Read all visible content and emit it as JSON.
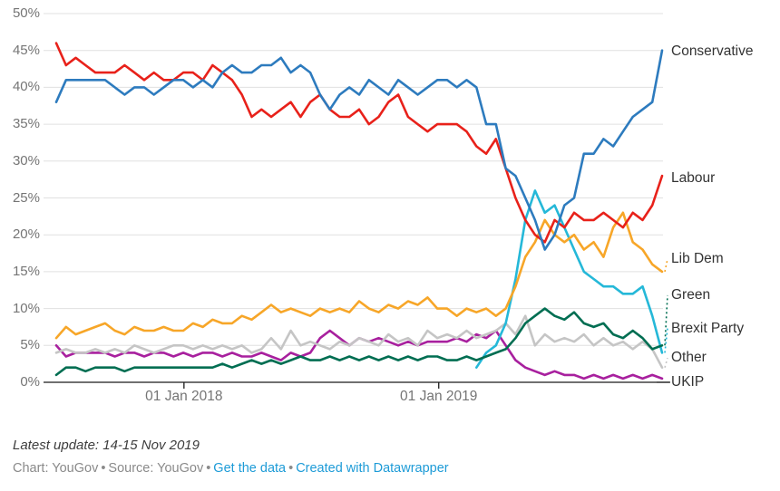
{
  "chart_data": {
    "type": "line",
    "title": "",
    "grid": true,
    "legend_position": "right-direct-labels",
    "grid_color": "#e0e0e0",
    "axis_color": "#1a1a1a",
    "tick_label_color": "#757575",
    "series_label_color": "#333333",
    "y_axis": {
      "min": 0,
      "max": 50,
      "step": 5,
      "suffix": "%"
    },
    "x_axis": {
      "start_date": "2017-07-02",
      "interval_days": 14,
      "ticks": [
        {
          "label": "01 Jan 2018",
          "date": "2018-01-01"
        },
        {
          "label": "01 Jan 2019",
          "date": "2019-01-01"
        }
      ]
    },
    "series": [
      {
        "name": "Conservative",
        "color": "#2d7bbe",
        "label_value": 44.8,
        "leader": "none",
        "values": [
          38,
          41,
          41,
          41,
          41,
          41,
          40,
          39,
          40,
          40,
          39,
          40,
          41,
          41,
          40,
          41,
          40,
          42,
          43,
          42,
          42,
          43,
          43,
          44,
          42,
          43,
          42,
          39,
          37,
          39,
          40,
          39,
          41,
          40,
          39,
          41,
          40,
          39,
          40,
          41,
          41,
          40,
          41,
          40,
          35,
          35,
          29,
          28,
          25,
          22,
          18,
          20,
          24,
          25,
          31,
          31,
          33,
          32,
          34,
          36,
          37,
          38,
          45
        ]
      },
      {
        "name": "Labour",
        "color": "#e8211a",
        "label_value": 27.6,
        "leader": "none",
        "values": [
          46,
          43,
          44,
          43,
          42,
          42,
          42,
          43,
          42,
          41,
          42,
          41,
          41,
          42,
          42,
          41,
          43,
          42,
          41,
          39,
          36,
          37,
          36,
          37,
          38,
          36,
          38,
          39,
          37,
          36,
          36,
          37,
          35,
          36,
          38,
          39,
          36,
          35,
          34,
          35,
          35,
          35,
          34,
          32,
          31,
          33,
          29,
          25,
          22,
          20,
          19,
          22,
          21,
          23,
          22,
          22,
          23,
          22,
          21,
          23,
          22,
          24,
          28
        ]
      },
      {
        "name": "Lib Dem",
        "color": "#f7a628",
        "label_value": 16.7,
        "leader": "dotted",
        "values": [
          6,
          7.5,
          6.5,
          7,
          7.5,
          8,
          7,
          6.5,
          7.5,
          7,
          7,
          7.5,
          7,
          7,
          8,
          7.5,
          8.5,
          8,
          8,
          9,
          8.5,
          9.5,
          10.5,
          9.5,
          10,
          9.5,
          9,
          10,
          9.5,
          10,
          9.5,
          11,
          10,
          9.5,
          10.5,
          10,
          11,
          10.5,
          11.5,
          10,
          10,
          9,
          10,
          9.5,
          10,
          9,
          10,
          13,
          17,
          19,
          22,
          20,
          19,
          20,
          18,
          19,
          17,
          21,
          23,
          19,
          18,
          16,
          15
        ]
      },
      {
        "name": "Green",
        "color": "#006e52",
        "label_value": 11.8,
        "leader": "dotted",
        "values": [
          1,
          2,
          2,
          1.5,
          2,
          2,
          2,
          1.5,
          2,
          2,
          2,
          2,
          2,
          2,
          2,
          2,
          2,
          2.5,
          2,
          2.5,
          3,
          2.5,
          3,
          2.5,
          3,
          3.5,
          3,
          3,
          3.5,
          3,
          3.5,
          3,
          3.5,
          3,
          3.5,
          3,
          3.5,
          3,
          3.5,
          3.5,
          3,
          3,
          3.5,
          3,
          3.5,
          4,
          4.5,
          6,
          8,
          9,
          10,
          9,
          8.5,
          9.5,
          8,
          7.5,
          8,
          6.5,
          6,
          7,
          6,
          4.5,
          5
        ]
      },
      {
        "name": "Brexit Party",
        "color": "#25b8d8",
        "label_value": 7.3,
        "leader": "dotted",
        "values": [
          null,
          null,
          null,
          null,
          null,
          null,
          null,
          null,
          null,
          null,
          null,
          null,
          null,
          null,
          null,
          null,
          null,
          null,
          null,
          null,
          null,
          null,
          null,
          null,
          null,
          null,
          null,
          null,
          null,
          null,
          null,
          null,
          null,
          null,
          null,
          null,
          null,
          null,
          null,
          null,
          null,
          null,
          null,
          2,
          4,
          5,
          8,
          14,
          22,
          26,
          23,
          24,
          21,
          18,
          15,
          14,
          13,
          13,
          12,
          12,
          13,
          9,
          4
        ]
      },
      {
        "name": "Other",
        "color": "#c5c5c5",
        "label_value": 3.3,
        "leader": "dotted",
        "values": [
          4,
          4.5,
          4,
          4,
          4.5,
          4,
          4.5,
          4,
          5,
          4.5,
          4,
          4.5,
          5,
          5,
          4.5,
          5,
          4.5,
          5,
          4.5,
          5,
          4,
          4.5,
          6,
          4.5,
          7,
          5,
          5.5,
          5,
          4.5,
          5.5,
          5,
          6,
          5.5,
          5,
          6.5,
          5.5,
          6,
          5,
          7,
          6,
          6.5,
          6,
          7,
          6,
          6.5,
          7,
          8,
          6.5,
          9,
          5,
          6.5,
          5.5,
          6,
          5.5,
          6.5,
          5,
          6,
          5,
          5.5,
          4.5,
          5.5,
          4.5,
          2
        ]
      },
      {
        "name": "UKIP",
        "color": "#a8209e",
        "label_value": 0,
        "leader": "solid",
        "values": [
          5,
          3.5,
          4,
          4,
          4,
          4,
          3.5,
          4,
          4,
          3.5,
          4,
          4,
          3.5,
          4,
          3.5,
          4,
          4,
          3.5,
          4,
          3.5,
          3.5,
          4,
          3.5,
          3,
          4,
          3.5,
          4,
          6,
          7,
          6,
          5,
          6,
          5.5,
          6,
          5.5,
          5,
          5.5,
          5,
          5.5,
          5.5,
          5.5,
          6,
          5.5,
          6.5,
          6,
          7,
          5,
          3,
          2,
          1.5,
          1,
          1.5,
          1,
          1,
          0.5,
          1,
          0.5,
          1,
          0.5,
          1,
          0.5,
          1,
          0.5
        ]
      }
    ]
  },
  "footer": {
    "latest_update": "Latest update: 14-15 Nov 2019",
    "chart_credit": "Chart: YouGov",
    "source_credit": "Source: YouGov",
    "separator": "•",
    "link_get_data": "Get the data",
    "link_created_with": "Created with Datawrapper",
    "link_color": "#1d9bd7"
  }
}
